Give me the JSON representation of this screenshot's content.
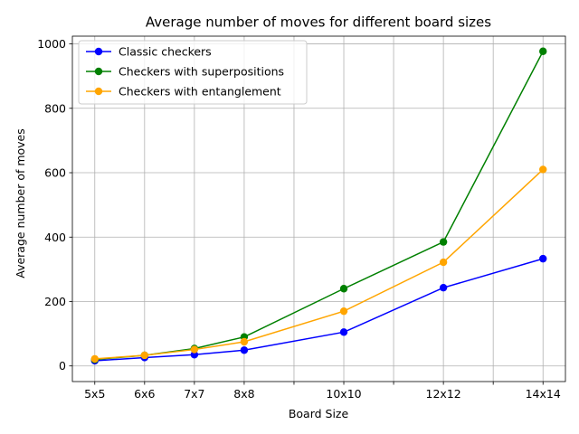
{
  "chart_data": {
    "type": "line",
    "title": "Average number of moves for different board sizes",
    "xlabel": "Board Size",
    "ylabel": "Average number of moves",
    "x_positions": [
      5,
      6,
      7,
      8,
      10,
      12,
      14
    ],
    "categories": [
      "5x5",
      "6x6",
      "7x7",
      "8x8",
      "10x10",
      "12x12",
      "14x14"
    ],
    "x_ticks": [
      {
        "pos": 5,
        "label": "5x5"
      },
      {
        "pos": 6,
        "label": "6x6"
      },
      {
        "pos": 7,
        "label": "7x7"
      },
      {
        "pos": 8,
        "label": "8x8"
      },
      {
        "pos": 9,
        "label": ""
      },
      {
        "pos": 10,
        "label": "10x10"
      },
      {
        "pos": 11,
        "label": ""
      },
      {
        "pos": 12,
        "label": "12x12"
      },
      {
        "pos": 13,
        "label": ""
      },
      {
        "pos": 14,
        "label": "14x14"
      }
    ],
    "xlim": [
      4.55,
      14.45
    ],
    "ylim": [
      -48.5,
      1024
    ],
    "y_ticks": [
      0,
      200,
      400,
      600,
      800,
      1000
    ],
    "grid": true,
    "legend_position": "top-left",
    "series": [
      {
        "name": "Classic checkers",
        "color": "#0000ff",
        "values": [
          16,
          26,
          35,
          49,
          105,
          243,
          333
        ]
      },
      {
        "name": "Checkers with superpositions",
        "color": "#008000",
        "values": [
          20,
          33,
          54,
          90,
          240,
          385,
          977
        ]
      },
      {
        "name": "Checkers with entanglement",
        "color": "#ffa500",
        "values": [
          22,
          33,
          51,
          75,
          170,
          322,
          610
        ]
      }
    ]
  }
}
